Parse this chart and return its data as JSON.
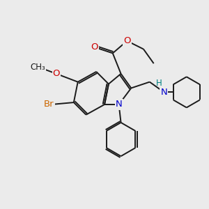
{
  "background_color": "#ebebeb",
  "bond_color": "#1a1a1a",
  "N_color": "#0000cc",
  "O_color": "#cc0000",
  "Br_color": "#cc6600",
  "H_color": "#008080",
  "figsize": [
    3.0,
    3.0
  ],
  "dpi": 100,
  "xlim": [
    0,
    10
  ],
  "ylim": [
    0,
    10
  ]
}
